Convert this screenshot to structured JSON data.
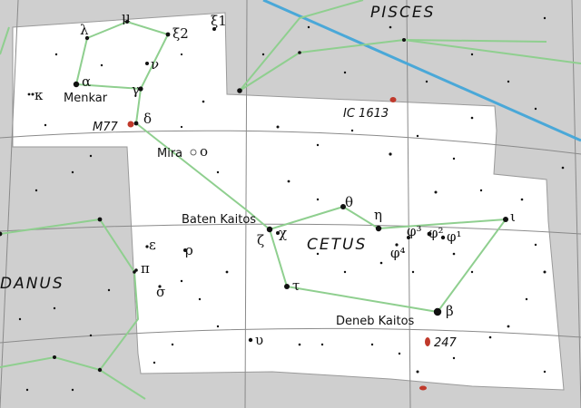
{
  "constellations": {
    "pisces": "PISCES",
    "cetus": "CETUS",
    "eridanus": "DANUS"
  },
  "star_names": {
    "menkar": "Menkar",
    "mira": "Mira",
    "baten_kaitos": "Baten Kaitos",
    "deneb_kaitos": "Deneb Kaitos"
  },
  "deep_sky": {
    "m77": "M77",
    "ic1613": "IC 1613",
    "ngc247": "247"
  },
  "greek": {
    "lambda": "λ",
    "mu": "μ",
    "xi2": "ξ2",
    "xi1": "ξ1",
    "nu": "ν",
    "alpha": "α",
    "kappa": "κ",
    "gamma": "γ",
    "delta": "δ",
    "omicron": "ο",
    "theta": "θ",
    "eta": "η",
    "zeta": "ζ",
    "chi": "χ",
    "tau": "τ",
    "beta": "β",
    "iota": "ι",
    "phi1": "φ¹",
    "phi2": "φ²",
    "phi3": "φ³",
    "phi4": "φ⁴",
    "epsilon": "ε",
    "rho": "ρ",
    "pi": "π",
    "sigma": "σ",
    "upsilon": "υ"
  },
  "colors": {
    "outside": "#cfcfcf",
    "inside": "#ffffff",
    "grid": "#8a8a8a",
    "lines": "#8fcf8f",
    "ecliptic": "#4aa8d8",
    "dso": "#c0392b"
  }
}
